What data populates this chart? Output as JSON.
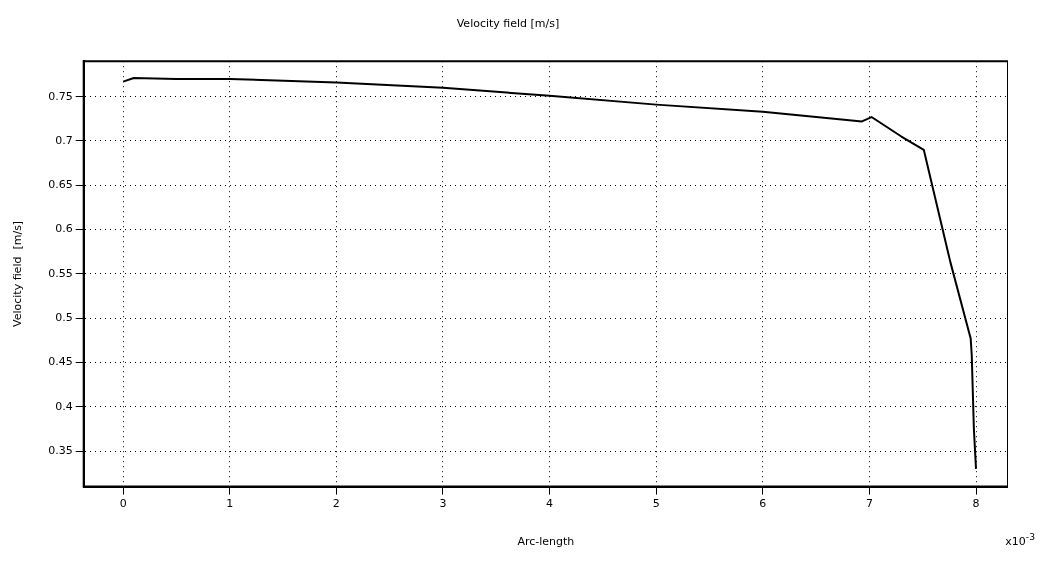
{
  "chart_data": {
    "type": "line",
    "title": "Velocity field [m/s]",
    "xlabel": "Arc-length",
    "ylabel": "Velocity field  [m/s]",
    "annotations": [
      "x10$^{-3}$"
    ],
    "x": [
      0,
      0.1,
      0.5,
      1,
      2,
      3,
      4,
      5,
      6,
      6.93,
      7.02,
      7.3,
      7.51,
      7.76,
      7.95,
      7.96,
      7.98,
      8.0
    ],
    "series": [
      {
        "color": "#000000",
        "values": [
          0.767,
          0.771,
          0.77,
          0.77,
          0.766,
          0.76,
          0.751,
          0.741,
          0.733,
          0.722,
          0.727,
          0.705,
          0.69,
          0.563,
          0.477,
          0.458,
          0.375,
          0.33
        ]
      }
    ],
    "xlim": [
      -0.37,
      8.3
    ],
    "ylim": [
      0.31,
      0.79
    ],
    "xticks": [
      0,
      1,
      2,
      3,
      4,
      5,
      6,
      7,
      8
    ],
    "yticks": [
      0.35,
      0.4,
      0.45,
      0.5,
      0.55,
      0.6,
      0.65,
      0.7,
      0.75
    ],
    "grid": true,
    "legend": false,
    "marker": "none",
    "line_style": "solid"
  }
}
